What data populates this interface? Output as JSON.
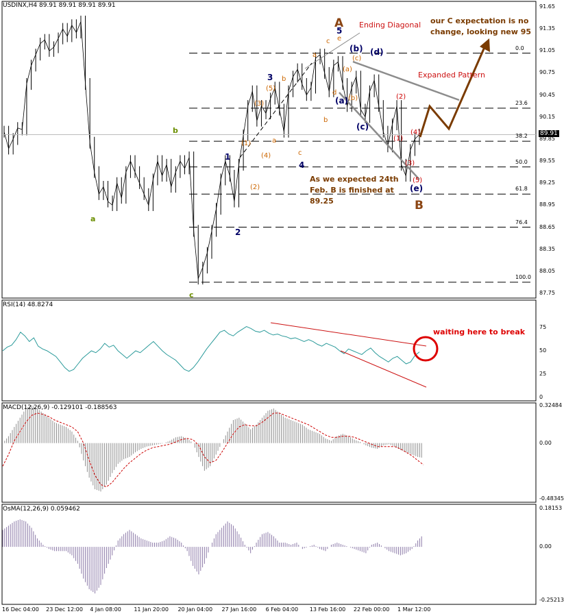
{
  "colors": {
    "price": "#000000",
    "rsi": "#2a9a9a",
    "macd_hist": "#8f8f8f",
    "macd_signal": "#cc0000",
    "osma": "#8c7aa8",
    "fib": "#000000",
    "wave_blue": "#000066",
    "wave_orange": "#cc6600",
    "wave_red": "#cc0000",
    "wave_green": "#6b8e00",
    "wave_brown": "#8b4513",
    "projection": "#7a3b00",
    "channel_grey": "#8c8c8c",
    "rsi_trend": "#cc0000"
  },
  "chart_data": [
    {
      "type": "line",
      "title": "USDINX,H4  89.91 89.91 89.91 89.91",
      "ylim": [
        87.75,
        91.65
      ],
      "y_ticks": [
        "91.65",
        "91.35",
        "91.05",
        "90.75",
        "90.45",
        "90.15",
        "89.85",
        "89.55",
        "89.25",
        "88.95",
        "88.65",
        "88.35",
        "88.05",
        "87.75"
      ],
      "current_price_label": "89.91",
      "fib_levels": [
        {
          "label": "0.0",
          "value": 91.02
        },
        {
          "label": "23.6",
          "value": 90.27
        },
        {
          "label": "38.2",
          "value": 89.82
        },
        {
          "label": "50.0",
          "value": 89.47
        },
        {
          "label": "61.8",
          "value": 89.1
        },
        {
          "label": "76.4",
          "value": 88.65
        },
        {
          "label": "100.0",
          "value": 87.9
        }
      ],
      "x_tick_labels": [
        "16 Dec 04:00",
        "23 Dec 12:00",
        "4 Jan 08:00",
        "11 Jan 20:00",
        "20 Jan 04:00",
        "27 Jan 16:00",
        "6 Feb 04:00",
        "13 Feb 16:00",
        "22 Feb 00:00",
        "1 Mar 12:00"
      ],
      "series": [
        {
          "values": [
            89.95,
            89.72,
            89.85,
            90.0,
            89.98,
            90.6,
            90.85,
            91.0,
            91.15,
            91.2,
            91.05,
            91.1,
            91.22,
            91.35,
            91.25,
            91.4,
            91.3,
            91.45,
            90.6,
            89.8,
            89.4,
            89.1,
            89.2,
            89.0,
            88.95,
            89.25,
            89.05,
            89.4,
            89.55,
            89.4,
            89.25,
            89.1,
            88.95,
            89.3,
            89.55,
            89.35,
            89.5,
            89.2,
            89.4,
            89.55,
            89.45,
            89.6,
            88.6,
            87.95,
            88.1,
            88.3,
            88.6,
            88.9,
            89.3,
            89.55,
            89.35,
            89.0,
            89.5,
            89.9,
            90.3,
            90.5,
            90.1,
            90.3,
            90.2,
            90.4,
            90.55,
            90.25,
            89.95,
            90.5,
            90.7,
            90.8,
            90.6,
            90.45,
            90.55,
            90.95,
            91.0,
            90.75,
            90.5,
            90.85,
            90.9,
            90.6,
            90.3,
            90.55,
            90.7,
            90.25,
            90.15,
            90.5,
            90.65,
            90.3,
            89.95,
            89.75,
            90.05,
            90.3,
            89.5,
            89.35,
            89.7,
            89.85,
            89.91
          ]
        }
      ]
    },
    {
      "type": "line",
      "title": "RSI(14)  48.8274",
      "ylim": [
        0,
        100
      ],
      "y_ticks": [
        "75",
        "50",
        "25",
        "0"
      ],
      "series": [
        {
          "values": [
            50,
            54,
            56,
            62,
            70,
            66,
            60,
            64,
            55,
            52,
            50,
            47,
            44,
            38,
            32,
            28,
            30,
            36,
            42,
            46,
            50,
            48,
            52,
            58,
            54,
            56,
            50,
            46,
            42,
            46,
            50,
            48,
            52,
            56,
            60,
            55,
            50,
            46,
            43,
            40,
            35,
            30,
            28,
            32,
            38,
            45,
            52,
            58,
            64,
            70,
            72,
            68,
            66,
            70,
            73,
            76,
            74,
            71,
            70,
            72,
            69,
            67,
            68,
            66,
            65,
            63,
            64,
            62,
            60,
            62,
            60,
            57,
            55,
            58,
            56,
            54,
            50,
            47,
            52,
            50,
            48,
            46,
            50,
            53,
            48,
            44,
            41,
            38,
            42,
            44,
            40,
            36,
            38,
            45,
            48.8
          ]
        }
      ]
    },
    {
      "type": "line",
      "title": "MACD(12,26,9)  -0.129101  -0.188563",
      "ylim": [
        -0.48345,
        0.32484
      ],
      "y_ticks": [
        "0.32484",
        "0.00",
        "-0.48345"
      ],
      "series": [
        {
          "name": "MACD",
          "values": [
            0.0,
            0.06,
            0.14,
            0.22,
            0.3,
            0.33,
            0.3,
            0.26,
            0.22,
            0.18,
            0.16,
            0.14,
            0.1,
            0.02,
            -0.15,
            -0.3,
            -0.4,
            -0.42,
            -0.36,
            -0.26,
            -0.18,
            -0.14,
            -0.12,
            -0.08,
            -0.05,
            -0.03,
            -0.02,
            -0.01,
            0.0,
            0.02,
            0.05,
            0.06,
            0.04,
            0.0,
            -0.12,
            -0.24,
            -0.2,
            -0.1,
            0.0,
            0.1,
            0.2,
            0.22,
            0.17,
            0.12,
            0.16,
            0.22,
            0.28,
            0.3,
            0.26,
            0.22,
            0.2,
            0.18,
            0.16,
            0.12,
            0.1,
            0.08,
            0.04,
            0.02,
            0.06,
            0.08,
            0.06,
            0.03,
            0.01,
            -0.02,
            -0.04,
            -0.05,
            -0.02,
            -0.01,
            -0.03,
            -0.06,
            -0.08,
            -0.1,
            -0.12,
            -0.129
          ]
        },
        {
          "name": "Signal",
          "values": [
            -0.2,
            -0.1,
            0.02,
            0.1,
            0.18,
            0.24,
            0.26,
            0.25,
            0.23,
            0.2,
            0.18,
            0.16,
            0.14,
            0.1,
            0.0,
            -0.15,
            -0.28,
            -0.36,
            -0.38,
            -0.34,
            -0.28,
            -0.22,
            -0.17,
            -0.13,
            -0.09,
            -0.06,
            -0.04,
            -0.03,
            -0.02,
            -0.01,
            0.01,
            0.03,
            0.04,
            0.03,
            -0.02,
            -0.12,
            -0.17,
            -0.15,
            -0.08,
            0.0,
            0.08,
            0.14,
            0.16,
            0.15,
            0.15,
            0.18,
            0.22,
            0.26,
            0.26,
            0.24,
            0.22,
            0.2,
            0.18,
            0.16,
            0.13,
            0.1,
            0.07,
            0.05,
            0.05,
            0.06,
            0.06,
            0.05,
            0.03,
            0.01,
            -0.01,
            -0.03,
            -0.03,
            -0.03,
            -0.03,
            -0.05,
            -0.08,
            -0.11,
            -0.15,
            -0.188563
          ]
        }
      ]
    },
    {
      "type": "bar",
      "title": "OsMA(12,26,9)  0.059462",
      "ylim": [
        -0.25213,
        0.18153
      ],
      "y_ticks": [
        "0.18153",
        "0.00",
        "-0.25213"
      ],
      "series": [
        {
          "values": [
            0.08,
            0.1,
            0.12,
            0.13,
            0.12,
            0.09,
            0.04,
            0.01,
            -0.01,
            -0.02,
            -0.02,
            -0.02,
            -0.04,
            -0.08,
            -0.15,
            -0.2,
            -0.22,
            -0.18,
            -0.1,
            -0.04,
            0.03,
            0.06,
            0.08,
            0.06,
            0.04,
            0.03,
            0.02,
            0.02,
            0.03,
            0.05,
            0.04,
            0.02,
            -0.02,
            -0.09,
            -0.13,
            -0.08,
            0.0,
            0.06,
            0.09,
            0.12,
            0.1,
            0.06,
            0.01,
            -0.03,
            0.02,
            0.06,
            0.07,
            0.05,
            0.02,
            0.02,
            0.01,
            0.02,
            -0.01,
            0.0,
            0.01,
            -0.01,
            -0.02,
            0.01,
            0.02,
            0.01,
            0.0,
            -0.01,
            -0.02,
            -0.03,
            0.01,
            0.02,
            0.0,
            -0.02,
            -0.03,
            -0.04,
            -0.03,
            -0.01,
            0.03,
            0.059462
          ]
        }
      ]
    }
  ],
  "annotations": {
    "wave_A": "A",
    "wave_B": "B",
    "ending_diagonal": "Ending Diagonal",
    "c_expectation_line1": "our C expectation is no",
    "c_expectation_line2": "change, looking new 95",
    "expanded_pattern": "Expanded Pattern",
    "b_finished_line1": "As we expected 24th",
    "b_finished_line2": "Feb. B is finished at",
    "b_finished_line3": "89.25",
    "rsi_wait": "waiting here to break",
    "w_1": "1",
    "w_2": "2",
    "w_3": "3",
    "w_4": "4",
    "w_5": "5",
    "w_a_small": "a",
    "w_b_small": "b",
    "w_c_small": "c",
    "w_ba": "(a)",
    "w_bb": "(b)",
    "w_bc": "(c)",
    "w_bd": "(d)",
    "w_be": "(e)",
    "o_1": "(1)",
    "o_2": "(2)",
    "o_3": "(3)",
    "o_4": "(4)",
    "o_5": "(5)",
    "o_a": "a",
    "o_b": "b",
    "o_c": "c",
    "o_d": "d",
    "o_e": "e",
    "o_pa": "(a)",
    "o_pb": "(b)",
    "o_pc": "(c)",
    "r_1": "(1)",
    "r_2": "(2)",
    "r_3": "(3)",
    "r_4": "(4)",
    "r_5": "(5)"
  }
}
